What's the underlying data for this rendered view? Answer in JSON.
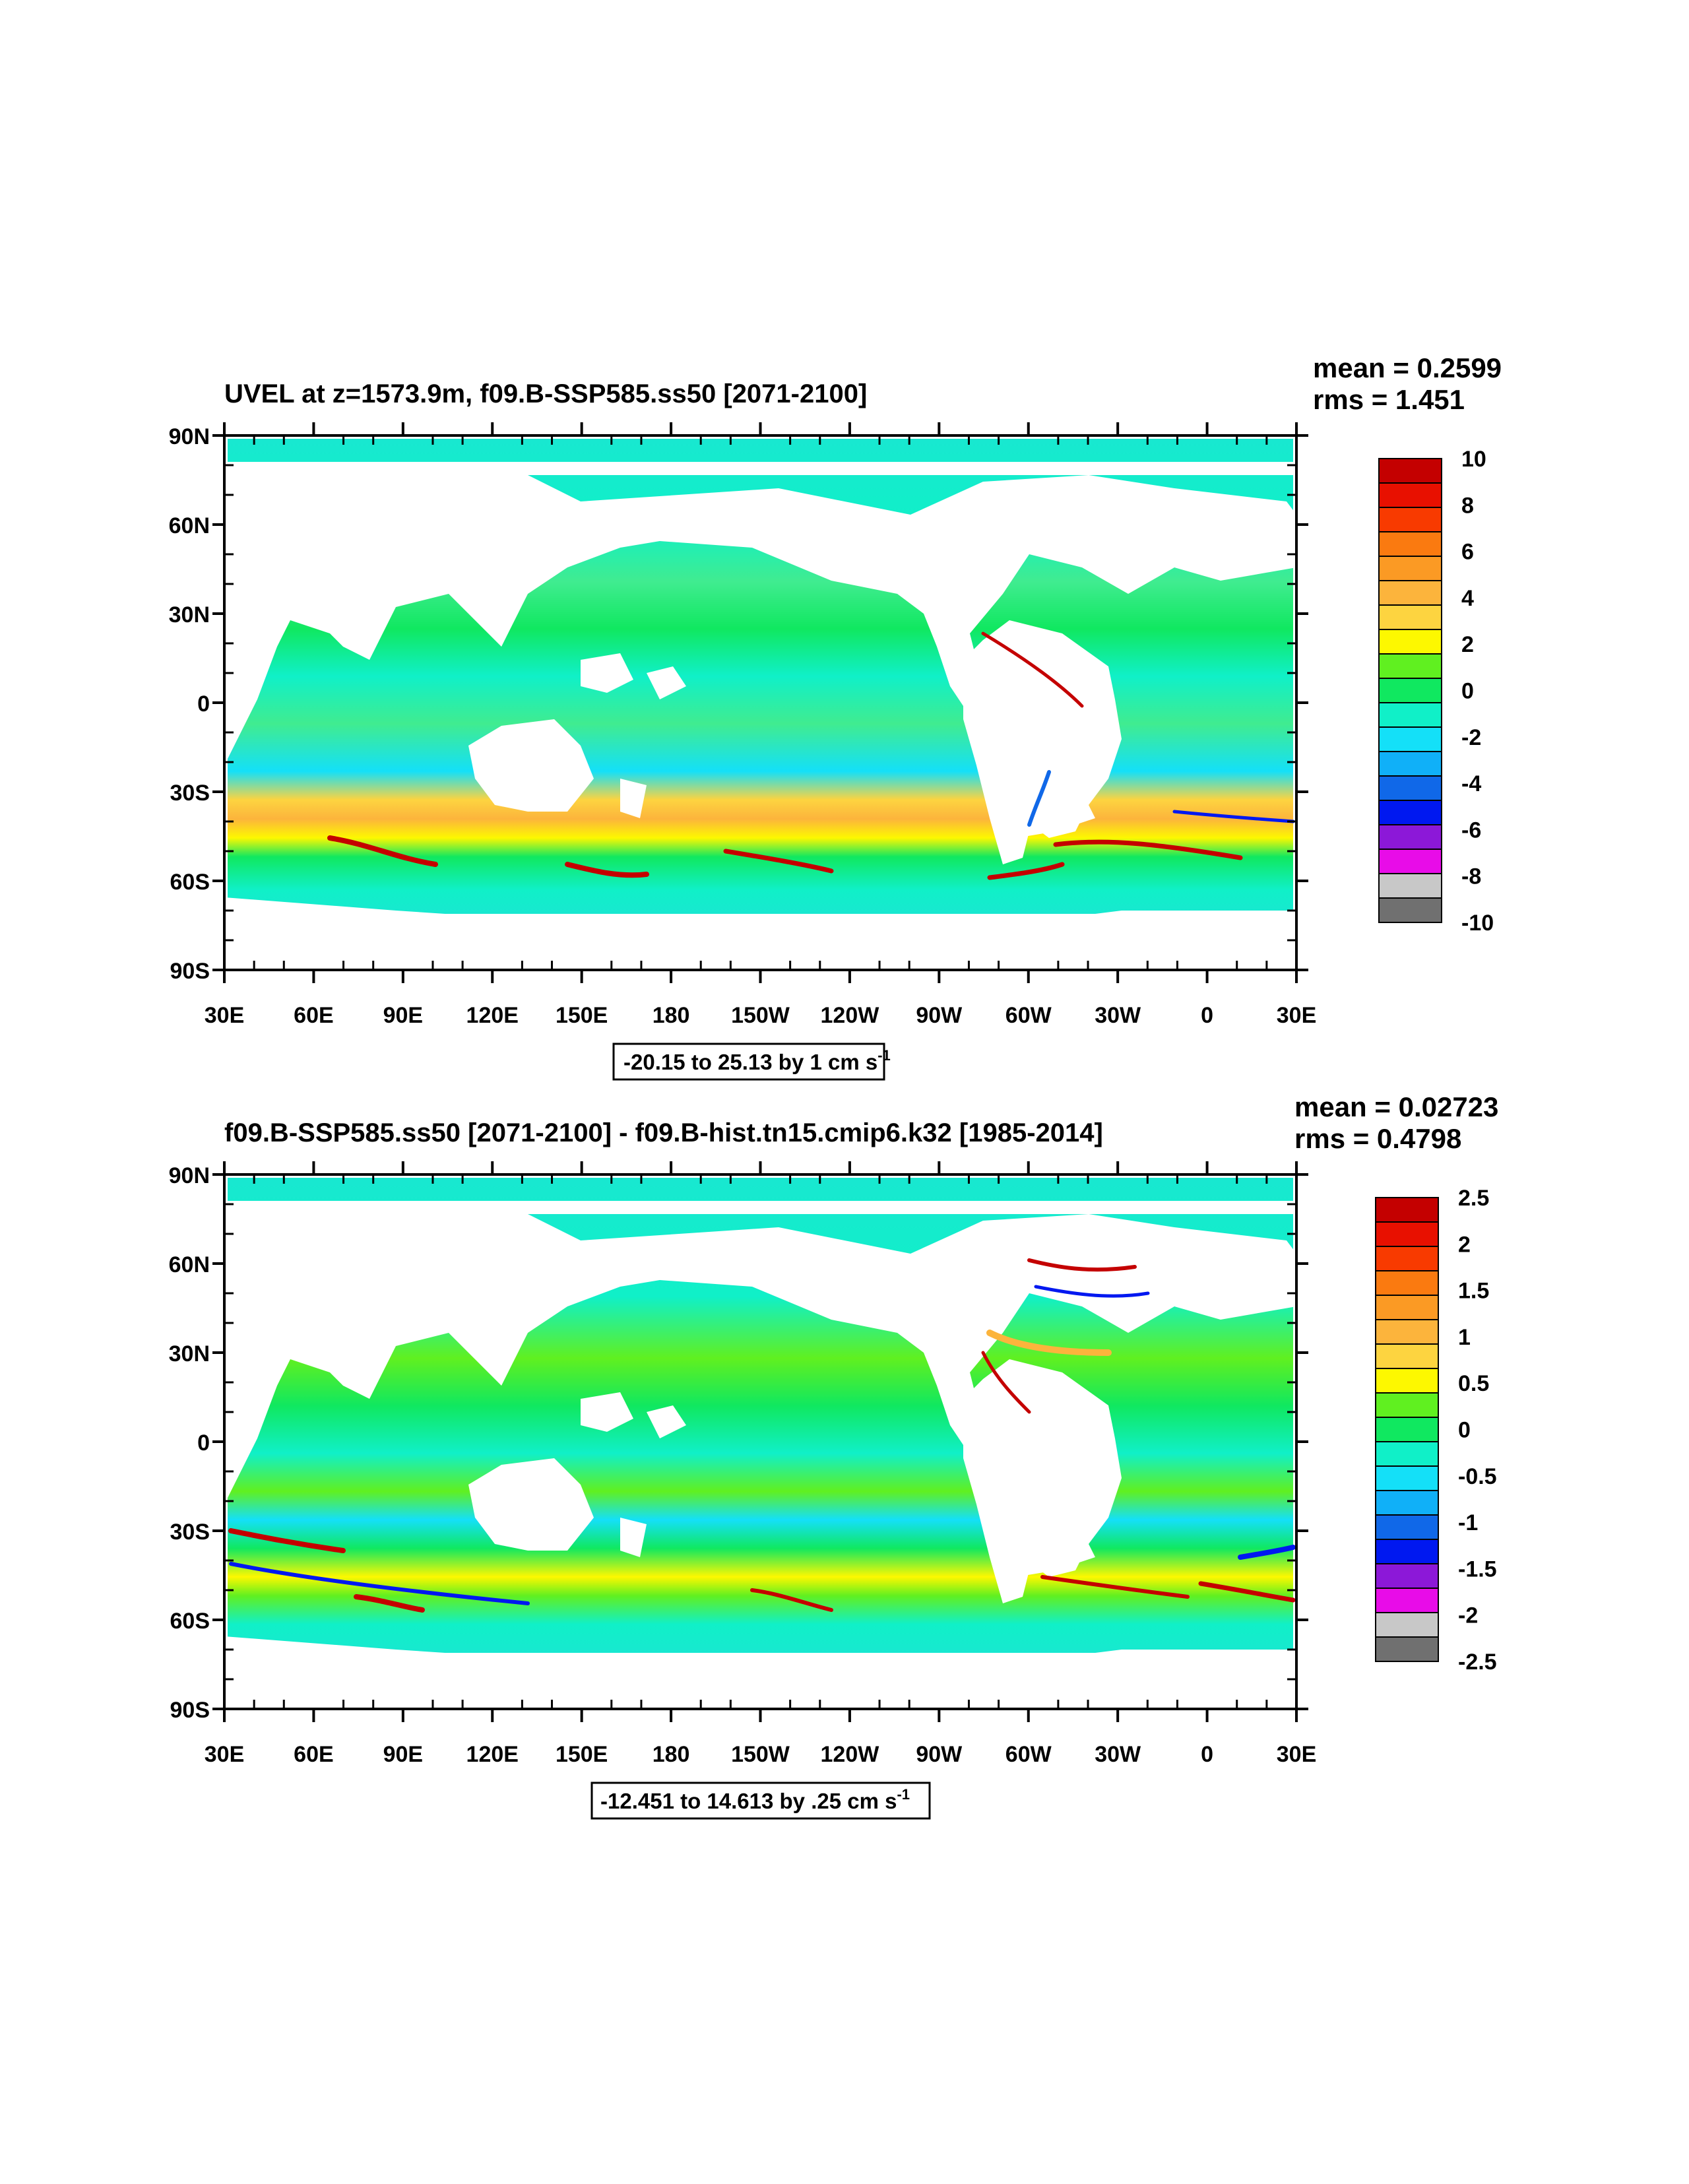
{
  "figure": {
    "panels": [
      {
        "title": "UVEL at z=1573.9m, f09.B-SSP585.ss50 [2071-2100]",
        "mean_text": "mean = 0.2599",
        "rms_text": "rms = 1.451",
        "range_text": "-20.15 to 25.13 by 1 cm s",
        "range_sup": "-1",
        "lat_labels": [
          "90N",
          "60N",
          "30N",
          "0",
          "30S",
          "60S",
          "90S"
        ],
        "lon_labels": [
          "30E",
          "60E",
          "90E",
          "120E",
          "150E",
          "180",
          "150W",
          "120W",
          "90W",
          "60W",
          "30W",
          "0",
          "30E"
        ],
        "colorbar_labels": [
          "10",
          "8",
          "6",
          "4",
          "2",
          "0",
          "-2",
          "-4",
          "-6",
          "-8",
          "-10"
        ]
      },
      {
        "title": "f09.B-SSP585.ss50 [2071-2100] - f09.B-hist.tn15.cmip6.k32 [1985-2014]",
        "mean_text": "mean = 0.02723",
        "rms_text": "rms = 0.4798",
        "range_text": "-12.451 to 14.613 by .25 cm s",
        "range_sup": "-1",
        "lat_labels": [
          "90N",
          "60N",
          "30N",
          "0",
          "30S",
          "60S",
          "90S"
        ],
        "lon_labels": [
          "30E",
          "60E",
          "90E",
          "120E",
          "150E",
          "180",
          "150W",
          "120W",
          "90W",
          "60W",
          "30W",
          "0",
          "30E"
        ],
        "colorbar_labels": [
          "2.5",
          "2",
          "1.5",
          "1",
          "0.5",
          "0",
          "-0.5",
          "-1",
          "-1.5",
          "-2",
          "-2.5"
        ]
      }
    ],
    "colorbar_colors": [
      "#c40000",
      "#e81000",
      "#f83a00",
      "#fa7a10",
      "#fb9a24",
      "#fcb43c",
      "#fdd440",
      "#fdf800",
      "#60f020",
      "#10e860",
      "#10f0c8",
      "#14e0f8",
      "#10b0f8",
      "#1068e8",
      "#0018f0",
      "#8c18d8",
      "#e80ce8",
      "#c8c8c8",
      "#707070"
    ]
  }
}
